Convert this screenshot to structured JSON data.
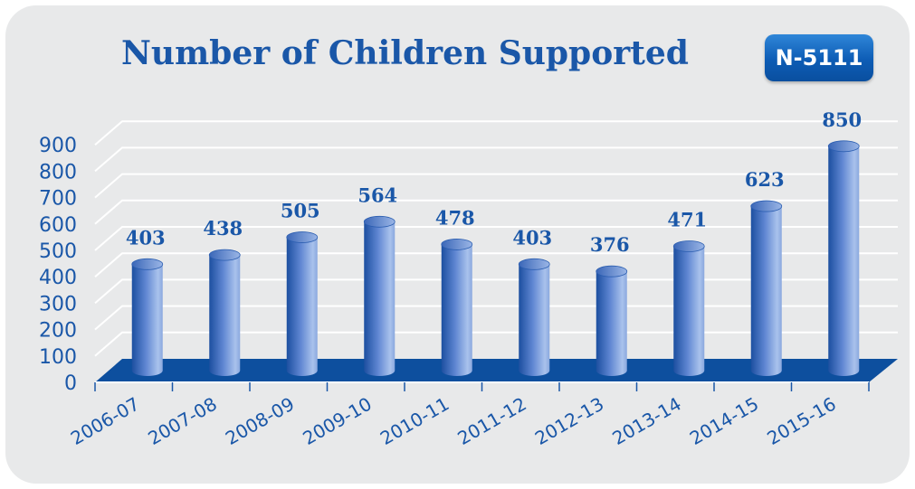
{
  "chart_data": {
    "type": "bar",
    "title": "Number of Children Supported",
    "badge": "N-5111",
    "categories": [
      "2006-07",
      "2007-08",
      "2008-09",
      "2009-10",
      "2010-11",
      "2011-12",
      "2012-13",
      "2013-14",
      "2014-15",
      "2015-16"
    ],
    "values": [
      403,
      438,
      505,
      564,
      478,
      403,
      376,
      471,
      623,
      850
    ],
    "data_labels": [
      "403",
      "438",
      "505",
      "564",
      "478",
      "403",
      "376",
      "471",
      "623",
      "850"
    ],
    "yticks": [
      "0",
      "100",
      "200",
      "300",
      "400",
      "500",
      "600",
      "700",
      "800",
      "900"
    ],
    "ylim": [
      0,
      900
    ],
    "xlabel": "",
    "ylabel": "",
    "grid": true,
    "style": "3d-cylinder",
    "colors": {
      "bar_dark": "#1c4fa0",
      "bar_light": "#a9c2ec",
      "floor": "#0d4f9e",
      "text": "#1a57a8",
      "background": "#e8e9ea"
    }
  }
}
